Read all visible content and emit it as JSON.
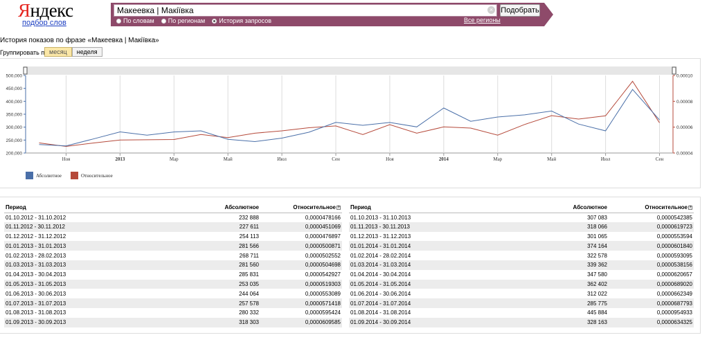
{
  "header": {
    "logo": "Яндекс",
    "logo_first_letter": "Я",
    "logo_rest": "ндекс",
    "sublink": "подбор слов",
    "search": {
      "value": "Макеевка | Макіївка"
    },
    "find_button": "Подобрать",
    "radios": [
      {
        "label": "По словам",
        "selected": false
      },
      {
        "label": "По регионам",
        "selected": false
      },
      {
        "label": "История запросов",
        "selected": true
      }
    ],
    "regions_link": "Все регионы"
  },
  "page": {
    "title": "История показов по фразе «Макеевка | Макіївка»",
    "group_label": "Группировать по:",
    "group_buttons": [
      {
        "label": "месяц",
        "active": true
      },
      {
        "label": "неделя",
        "active": false
      }
    ]
  },
  "colors": {
    "absolute": "#4a6fa8",
    "relative": "#b5493a",
    "accent": "#8e4a6a"
  },
  "chart_data": {
    "type": "line",
    "x": [
      "2012-10",
      "2012-11",
      "2012-12",
      "2013-01",
      "2013-02",
      "2013-03",
      "2013-04",
      "2013-05",
      "2013-06",
      "2013-07",
      "2013-08",
      "2013-09",
      "2013-10",
      "2013-11",
      "2013-12",
      "2014-01",
      "2014-02",
      "2014-03",
      "2014-04",
      "2014-05",
      "2014-06",
      "2014-07",
      "2014-08",
      "2014-09"
    ],
    "x_tick_labels": [
      "Ноя",
      "2013",
      "Мар",
      "Май",
      "Июл",
      "Сен",
      "Ноя",
      "2014",
      "Мар",
      "Май",
      "Июл",
      "Сен"
    ],
    "ylim_left": [
      200000,
      500000
    ],
    "left_ticks": [
      "200,000",
      "250,000",
      "300,000",
      "350,000",
      "400,000",
      "450,000",
      "500,000"
    ],
    "ylim_right": [
      4e-05,
      0.0001
    ],
    "right_ticks": [
      "0.00004",
      "0.00006",
      "0.00008",
      "0.00010"
    ],
    "series": [
      {
        "name": "Абсолютное",
        "axis": "left",
        "values": [
          232888,
          227611,
          254113,
          281566,
          268711,
          281560,
          285831,
          253035,
          244064,
          257578,
          280332,
          318303,
          307083,
          318066,
          301065,
          374164,
          322578,
          339362,
          347580,
          362402,
          312022,
          285775,
          445884,
          328163
        ]
      },
      {
        "name": "Относительное",
        "axis": "right",
        "values": [
          4.78166e-05,
          4.51069e-05,
          4.76897e-05,
          5.00871e-05,
          5.02552e-05,
          5.04698e-05,
          5.42927e-05,
          5.19303e-05,
          5.53089e-05,
          5.71418e-05,
          5.95424e-05,
          6.09585e-05,
          5.42385e-05,
          6.19723e-05,
          5.53594e-05,
          6.0184e-05,
          5.93095e-05,
          5.38156e-05,
          6.20657e-05,
          6.8902e-05,
          6.62349e-05,
          6.87793e-05,
          9.54933e-05,
          6.34325e-05
        ]
      }
    ],
    "grid": true,
    "legend": "bottom-left"
  },
  "table": {
    "headers": {
      "period": "Период",
      "absolute": "Абсолютное",
      "relative": "Относительное"
    },
    "left_rows": [
      {
        "period": "01.10.2012 - 31.10.2012",
        "absolute": "232 888",
        "relative": "0,0000478166"
      },
      {
        "period": "01.11.2012 - 30.11.2012",
        "absolute": "227 611",
        "relative": "0,0000451069"
      },
      {
        "period": "01.12.2012 - 31.12.2012",
        "absolute": "254 113",
        "relative": "0,0000476897"
      },
      {
        "period": "01.01.2013 - 31.01.2013",
        "absolute": "281 566",
        "relative": "0,0000500871"
      },
      {
        "period": "01.02.2013 - 28.02.2013",
        "absolute": "268 711",
        "relative": "0,0000502552"
      },
      {
        "period": "01.03.2013 - 31.03.2013",
        "absolute": "281 560",
        "relative": "0,0000504698"
      },
      {
        "period": "01.04.2013 - 30.04.2013",
        "absolute": "285 831",
        "relative": "0,0000542927"
      },
      {
        "period": "01.05.2013 - 31.05.2013",
        "absolute": "253 035",
        "relative": "0,0000519303"
      },
      {
        "period": "01.06.2013 - 30.06.2013",
        "absolute": "244 064",
        "relative": "0,0000553089"
      },
      {
        "period": "01.07.2013 - 31.07.2013",
        "absolute": "257 578",
        "relative": "0,0000571418"
      },
      {
        "period": "01.08.2013 - 31.08.2013",
        "absolute": "280 332",
        "relative": "0,0000595424"
      },
      {
        "period": "01.09.2013 - 30.09.2013",
        "absolute": "318 303",
        "relative": "0,0000609585"
      }
    ],
    "right_rows": [
      {
        "period": "01.10.2013 - 31.10.2013",
        "absolute": "307 083",
        "relative": "0,0000542385"
      },
      {
        "period": "01.11.2013 - 30.11.2013",
        "absolute": "318 066",
        "relative": "0,0000619723"
      },
      {
        "period": "01.12.2013 - 31.12.2013",
        "absolute": "301 065",
        "relative": "0,0000553594"
      },
      {
        "period": "01.01.2014 - 31.01.2014",
        "absolute": "374 164",
        "relative": "0,0000601840"
      },
      {
        "period": "01.02.2014 - 28.02.2014",
        "absolute": "322 578",
        "relative": "0,0000593095"
      },
      {
        "period": "01.03.2014 - 31.03.2014",
        "absolute": "339 362",
        "relative": "0,0000538156"
      },
      {
        "period": "01.04.2014 - 30.04.2014",
        "absolute": "347 580",
        "relative": "0,0000620657"
      },
      {
        "period": "01.05.2014 - 31.05.2014",
        "absolute": "362 402",
        "relative": "0,0000689020"
      },
      {
        "period": "01.06.2014 - 30.06.2014",
        "absolute": "312 022",
        "relative": "0,0000662349"
      },
      {
        "period": "01.07.2014 - 31.07.2014",
        "absolute": "285 775",
        "relative": "0,0000687793"
      },
      {
        "period": "01.08.2014 - 31.08.2014",
        "absolute": "445 884",
        "relative": "0,0000954933"
      },
      {
        "period": "01.09.2014 - 30.09.2014",
        "absolute": "328 163",
        "relative": "0,0000634325"
      }
    ]
  }
}
